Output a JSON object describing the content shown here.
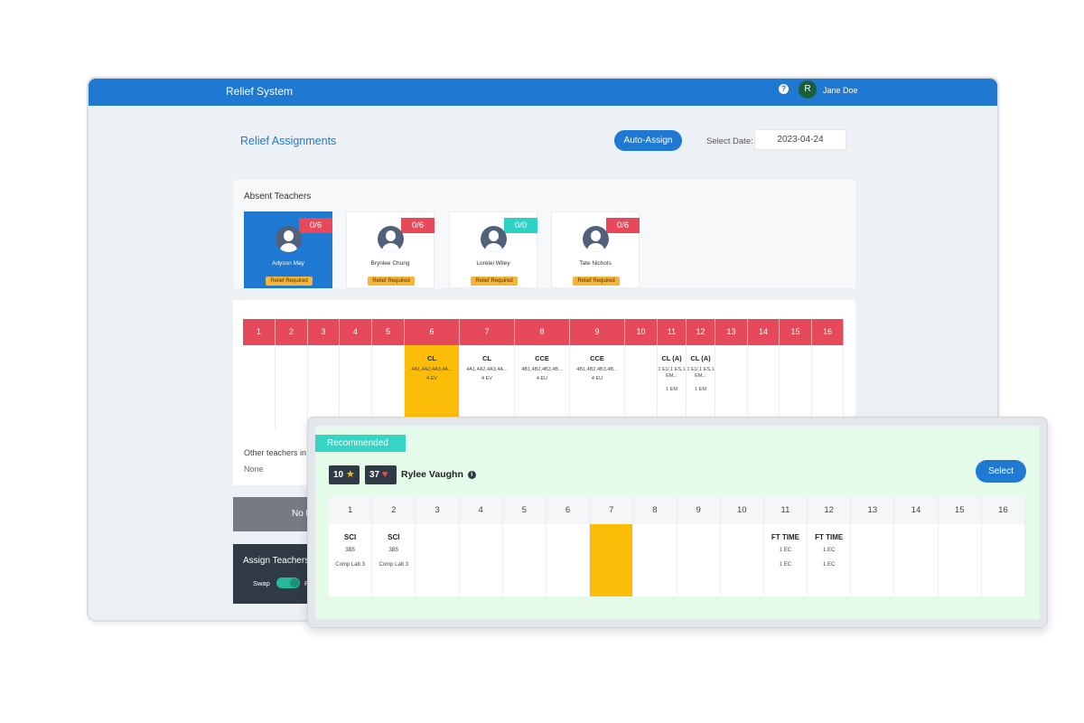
{
  "app": {
    "title": "Relief System",
    "user_initial": "R",
    "user_name": "Jane Doe",
    "help_icon": "question-circle-icon"
  },
  "page": {
    "heading": "Relief Assignments",
    "auto_assign_label": "Auto-Assign",
    "date_label": "Select Date:",
    "date_value": "2023-04-24"
  },
  "absent": {
    "title": "Absent Teachers",
    "teachers": [
      {
        "name": "Adyson May",
        "count": "0/6",
        "status": "Relief Required"
      },
      {
        "name": "Brynlee Chung",
        "count": "0/6",
        "status": "Relief Required"
      },
      {
        "name": "Lorelei Wiley",
        "count": "0/0",
        "status": "Relief Required"
      },
      {
        "name": "Tate Nichols",
        "count": "0/6",
        "status": "Relief Required"
      }
    ]
  },
  "timetable": {
    "periods": [
      "1",
      "2",
      "3",
      "4",
      "5",
      "6",
      "7",
      "8",
      "9",
      "10",
      "11",
      "12",
      "13",
      "14",
      "15",
      "16"
    ],
    "cells": [
      {
        "subject": "",
        "line1": "",
        "line2": "",
        "line3": ""
      },
      {
        "subject": "",
        "line1": "",
        "line2": "",
        "line3": ""
      },
      {
        "subject": "",
        "line1": "",
        "line2": "",
        "line3": ""
      },
      {
        "subject": "",
        "line1": "",
        "line2": "",
        "line3": ""
      },
      {
        "subject": "",
        "line1": "",
        "line2": "",
        "line3": ""
      },
      {
        "subject": "CL",
        "line1": "4A1,4A2,4A3,4A...",
        "line2": "4 EV",
        "line3": ""
      },
      {
        "subject": "CL",
        "line1": "4A1,4A2,4A3,4A...",
        "line2": "4 EV",
        "line3": ""
      },
      {
        "subject": "CCE",
        "line1": "4B1,4B2,4B3,4B...",
        "line2": "4 EU",
        "line3": ""
      },
      {
        "subject": "CCE",
        "line1": "4B1,4B2,4B3,4B...",
        "line2": "4 EU",
        "line3": ""
      },
      {
        "subject": "",
        "line1": "",
        "line2": "",
        "line3": ""
      },
      {
        "subject": "CL (A)",
        "line1": "1 EU,1 ES,1 EM...",
        "line2": "",
        "line3": "1 EM"
      },
      {
        "subject": "CL (A)",
        "line1": "1 EU,1 ES,1 EM...",
        "line2": "",
        "line3": "1 EM"
      },
      {
        "subject": "",
        "line1": "",
        "line2": "",
        "line3": ""
      },
      {
        "subject": "",
        "line1": "",
        "line2": "",
        "line3": ""
      },
      {
        "subject": "",
        "line1": "",
        "line2": "",
        "line3": ""
      },
      {
        "subject": "",
        "line1": "",
        "line2": "",
        "line3": ""
      }
    ],
    "other_label": "Other teachers in",
    "other_value": "None"
  },
  "actions": {
    "grey_button_label": "No R",
    "assign_label": "Assign Teachers",
    "swap_label": "Swap",
    "toggle_text": "R"
  },
  "recommended": {
    "tag": "Recommended",
    "score_star": "10",
    "score_heart": "37",
    "teacher_name": "Rylee Vaughn",
    "select_label": "Select",
    "periods": [
      "1",
      "2",
      "3",
      "4",
      "5",
      "6",
      "7",
      "8",
      "9",
      "10",
      "11",
      "12",
      "13",
      "14",
      "15",
      "16"
    ],
    "cells": [
      {
        "subject": "SCI",
        "line1": "3B5",
        "line2": "Comp Lab 3"
      },
      {
        "subject": "SCI",
        "line1": "3B5",
        "line2": "Comp Lab 3"
      },
      {
        "subject": "",
        "line1": "",
        "line2": ""
      },
      {
        "subject": "",
        "line1": "",
        "line2": ""
      },
      {
        "subject": "",
        "line1": "",
        "line2": ""
      },
      {
        "subject": "",
        "line1": "",
        "line2": ""
      },
      {
        "subject": "",
        "line1": "",
        "line2": ""
      },
      {
        "subject": "",
        "line1": "",
        "line2": ""
      },
      {
        "subject": "",
        "line1": "",
        "line2": ""
      },
      {
        "subject": "",
        "line1": "",
        "line2": ""
      },
      {
        "subject": "FT TIME",
        "line1": "1 EC",
        "line2": "1 EC"
      },
      {
        "subject": "FT TIME",
        "line1": "1 EC",
        "line2": "1 EC"
      },
      {
        "subject": "",
        "line1": "",
        "line2": ""
      },
      {
        "subject": "",
        "line1": "",
        "line2": ""
      },
      {
        "subject": "",
        "line1": "",
        "line2": ""
      },
      {
        "subject": "",
        "line1": "",
        "line2": ""
      }
    ]
  },
  "colors": {
    "primary": "#1f78d1",
    "period_header": "#e64a5a",
    "highlight": "#fbbd08",
    "recommended_bg": "#e3fbe8",
    "recommended_tag": "#34d5c3",
    "badge_teal": "#2ed2c4"
  }
}
